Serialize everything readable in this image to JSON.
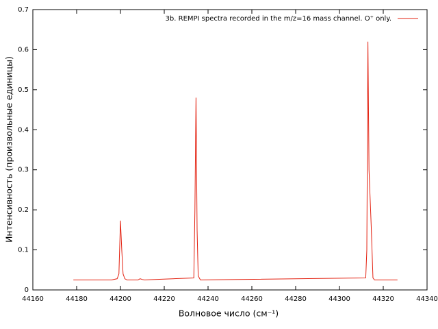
{
  "chart_data": {
    "type": "line",
    "xlabel": "Волновое число (см⁻¹)",
    "ylabel": "Интенсивность (произвольные единицы)",
    "legend": "top-right",
    "x": [
      44178.5,
      44196,
      44198.5,
      44199.3,
      44200,
      44200.6,
      44201.2,
      44202,
      44203,
      44208,
      44209,
      44210,
      44211,
      44233.5,
      44234,
      44234.5,
      44235,
      44235.5,
      44236.5,
      44312,
      44312.5,
      44313,
      44313.5,
      44314.5,
      44315.3,
      44316,
      44326.5
    ],
    "series": [
      {
        "name": "3b. REMPI spectra recorded in the m/z=16 mass channel. O⁺ only.",
        "color": "#e3200f",
        "values": [
          0.025,
          0.025,
          0.028,
          0.04,
          0.173,
          0.1,
          0.04,
          0.028,
          0.025,
          0.025,
          0.028,
          0.026,
          0.025,
          0.03,
          0.2,
          0.48,
          0.15,
          0.035,
          0.025,
          0.03,
          0.1,
          0.62,
          0.3,
          0.16,
          0.03,
          0.025,
          0.025
        ]
      }
    ],
    "xlim": [
      44160,
      44340
    ],
    "xticks": [
      44160,
      44180,
      44200,
      44220,
      44240,
      44260,
      44280,
      44300,
      44320,
      44340
    ],
    "ylim": [
      0,
      0.7
    ],
    "yticks": [
      0,
      0.1,
      0.2,
      0.3,
      0.4,
      0.5,
      0.6,
      0.7
    ]
  }
}
